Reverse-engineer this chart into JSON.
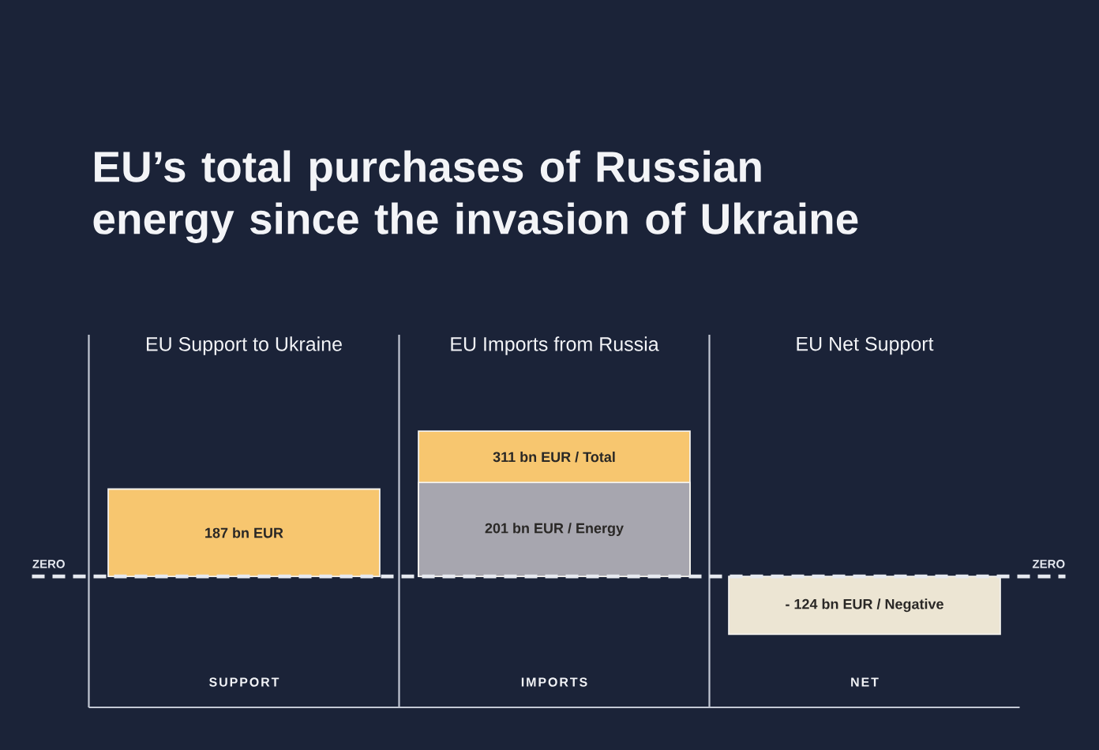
{
  "chart_data": {
    "type": "bar",
    "title": "EU’s total purchases of Russian energy since the invasion of Ukraine",
    "annotations": [
      "EU Support to Ukraine",
      "EU Imports from Russia",
      "EU Net Support"
    ],
    "categories": [
      "SUPPORT",
      "IMPORTS",
      "NET"
    ],
    "series": [
      {
        "values": [
          187,
          311,
          -124
        ],
        "colors": [
          "#f7c66f",
          "#f7c66f",
          "#ece5d3"
        ],
        "value_labels": [
          "187 bn EUR",
          "311 bn EUR / Total",
          "- 124 bn EUR / Negative"
        ]
      },
      {
        "values": [
          null,
          201,
          null
        ],
        "color": "#a7a6af",
        "value_labels": [
          null,
          "201 bn EUR / Energy",
          null
        ]
      }
    ],
    "ref_lines": [
      {
        "axis": "y",
        "value": 0,
        "label": "ZERO",
        "color": "#e6e9f0",
        "line_style": "dashed"
      }
    ],
    "grid": "x"
  }
}
